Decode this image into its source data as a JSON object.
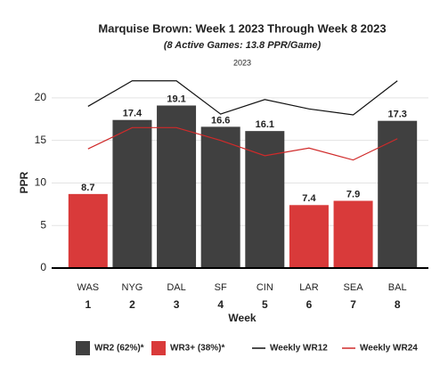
{
  "chart_data": {
    "type": "bar",
    "title": "Marquise Brown: Week 1 2023 Through Week 8 2023",
    "subtitle": "(8 Active Games: 13.8 PPR/Game)",
    "caption": "2023",
    "y_label": "PPR",
    "x_label": "Week",
    "categories": [
      "WAS",
      "NYG",
      "DAL",
      "SF",
      "CIN",
      "LAR",
      "SEA",
      "BAL"
    ],
    "weeks": [
      1,
      2,
      3,
      4,
      5,
      6,
      7,
      8
    ],
    "series": [
      {
        "name": "WR2 (62%)*",
        "kind": "bar",
        "color": "#404040",
        "values": [
          null,
          17.4,
          19.1,
          16.6,
          16.1,
          null,
          null,
          17.3
        ]
      },
      {
        "name": "WR3+ (38%)*",
        "kind": "bar",
        "color": "#d93a3a",
        "values": [
          8.7,
          null,
          null,
          null,
          null,
          7.4,
          7.9,
          null
        ]
      },
      {
        "name": "Weekly WR12",
        "kind": "line",
        "color": "#111111",
        "values": [
          19.0,
          22.0,
          22.0,
          18.1,
          19.8,
          18.7,
          18.0,
          22.0
        ]
      },
      {
        "name": "Weekly WR24",
        "kind": "line",
        "color": "#d02a2a",
        "values": [
          14.0,
          16.5,
          16.5,
          15.0,
          13.2,
          14.1,
          12.7,
          15.2
        ]
      }
    ],
    "ylim": [
      0,
      22.5
    ],
    "yticks": [
      0,
      5,
      10,
      15,
      20
    ],
    "grid": true
  }
}
